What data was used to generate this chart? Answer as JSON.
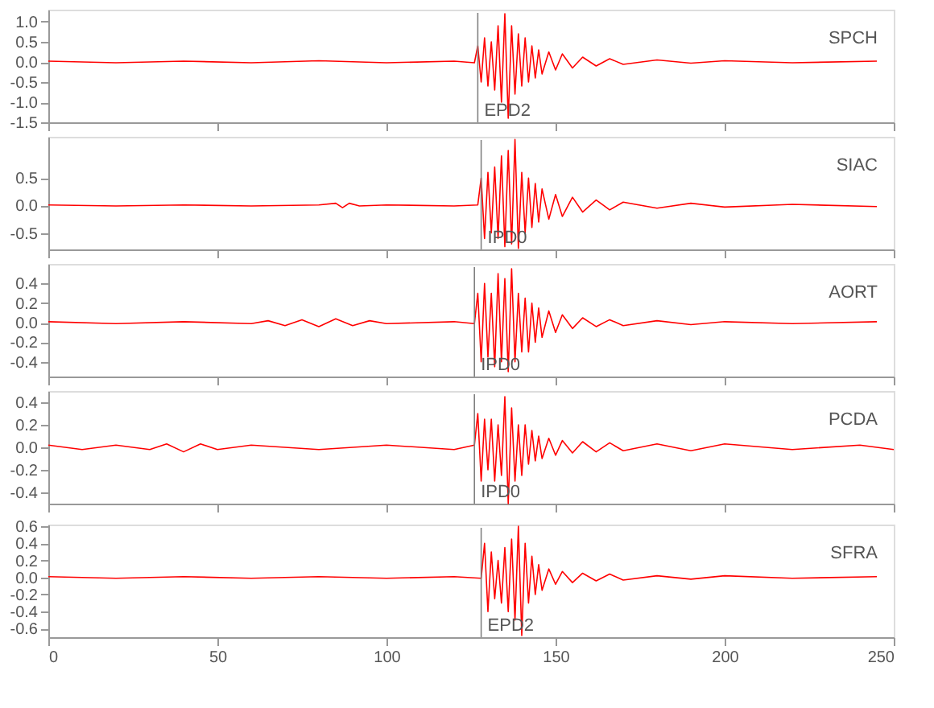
{
  "chart_data": [
    {
      "type": "line",
      "tick_labels": "y",
      "xlim": [
        0,
        250
      ],
      "xticks": [
        0,
        50,
        100,
        150,
        200,
        250
      ],
      "ylim": [
        -1.5,
        1.3
      ],
      "yticks": [
        {
          "value": -1.5,
          "label": "-1.5"
        },
        {
          "value": -1,
          "label": "-1.0"
        },
        {
          "value": -0.5,
          "label": "-0.5"
        },
        {
          "value": 0,
          "label": "0.0"
        },
        {
          "value": 0.5,
          "label": "0.5"
        },
        {
          "value": 1,
          "label": "1.0"
        }
      ],
      "grid": false,
      "marker": "none",
      "line_style": "solid",
      "series": [
        {
          "name": "SPCH",
          "color": "#ff0000",
          "x": [
            0,
            20,
            40,
            60,
            80,
            100,
            120,
            126,
            127,
            128,
            129,
            130,
            131,
            132,
            133,
            134,
            135,
            136,
            137,
            138,
            139,
            140,
            141,
            142,
            143,
            144,
            145,
            146,
            148,
            150,
            152,
            155,
            158,
            162,
            166,
            170,
            180,
            190,
            200,
            220,
            245
          ],
          "values": [
            0.02,
            -0.02,
            0.02,
            -0.02,
            0.03,
            -0.02,
            0.02,
            -0.02,
            0.4,
            -0.5,
            0.6,
            -0.6,
            0.5,
            -0.7,
            0.9,
            -1.0,
            1.2,
            -1.4,
            0.9,
            -0.8,
            0.7,
            -0.6,
            0.6,
            -0.5,
            0.4,
            -0.4,
            0.3,
            -0.3,
            0.25,
            -0.2,
            0.2,
            -0.15,
            0.12,
            -0.1,
            0.08,
            -0.06,
            0.05,
            -0.03,
            0.03,
            -0.02,
            0.02
          ]
        }
      ],
      "ref_lines": [
        {
          "axis": "x",
          "value": 127,
          "label": "EPD2",
          "color": "#808080"
        }
      ]
    },
    {
      "type": "line",
      "tick_labels": "y",
      "xlim": [
        0,
        250
      ],
      "xticks": [
        0,
        50,
        100,
        150,
        200,
        250
      ],
      "ylim": [
        -0.8,
        1.25
      ],
      "yticks": [
        {
          "value": -0.5,
          "label": "-0.5"
        },
        {
          "value": 0,
          "label": "0.0"
        },
        {
          "value": 0.5,
          "label": "0.5"
        }
      ],
      "grid": false,
      "marker": "none",
      "line_style": "solid",
      "series": [
        {
          "name": "SIAC",
          "color": "#ff0000",
          "x": [
            0,
            20,
            40,
            60,
            80,
            85,
            87,
            89,
            92,
            100,
            120,
            127,
            128,
            129,
            130,
            131,
            132,
            133,
            134,
            135,
            136,
            137,
            138,
            139,
            140,
            141,
            142,
            143,
            144,
            145,
            146,
            148,
            150,
            152,
            155,
            158,
            162,
            166,
            170,
            180,
            190,
            200,
            220,
            245
          ],
          "values": [
            0.01,
            -0.01,
            0.01,
            -0.01,
            0.01,
            0.04,
            -0.04,
            0.04,
            -0.01,
            0.01,
            -0.01,
            0.01,
            0.5,
            -0.6,
            0.6,
            -0.5,
            0.7,
            -0.6,
            0.9,
            -0.75,
            1.0,
            -0.7,
            1.2,
            -0.78,
            0.6,
            -0.5,
            0.5,
            -0.4,
            0.4,
            -0.3,
            0.3,
            -0.25,
            0.2,
            -0.2,
            0.15,
            -0.12,
            0.1,
            -0.08,
            0.06,
            -0.05,
            0.04,
            -0.03,
            0.02,
            -0.02
          ]
        }
      ],
      "ref_lines": [
        {
          "axis": "x",
          "value": 128,
          "label": "IPD0",
          "color": "#808080"
        }
      ]
    },
    {
      "type": "line",
      "tick_labels": "y",
      "xlim": [
        0,
        250
      ],
      "xticks": [
        0,
        50,
        100,
        150,
        200,
        250
      ],
      "ylim": [
        -0.55,
        0.6
      ],
      "yticks": [
        {
          "value": -0.4,
          "label": "-0.4"
        },
        {
          "value": -0.2,
          "label": "-0.2"
        },
        {
          "value": 0,
          "label": "0.0"
        },
        {
          "value": 0.2,
          "label": "0.2"
        },
        {
          "value": 0.4,
          "label": "0.4"
        }
      ],
      "grid": false,
      "marker": "none",
      "line_style": "solid",
      "series": [
        {
          "name": "AORT",
          "color": "#ff0000",
          "x": [
            0,
            20,
            40,
            60,
            65,
            70,
            75,
            80,
            85,
            90,
            95,
            100,
            120,
            126,
            127,
            128,
            129,
            130,
            131,
            132,
            133,
            134,
            135,
            136,
            137,
            138,
            139,
            140,
            141,
            142,
            143,
            144,
            145,
            146,
            148,
            150,
            152,
            155,
            158,
            162,
            166,
            170,
            180,
            190,
            200,
            220,
            245
          ],
          "values": [
            0.01,
            -0.01,
            0.01,
            -0.01,
            0.02,
            -0.03,
            0.03,
            -0.04,
            0.04,
            -0.03,
            0.02,
            -0.01,
            0.01,
            -0.01,
            0.3,
            -0.4,
            0.4,
            -0.35,
            0.3,
            -0.45,
            0.5,
            -0.4,
            0.45,
            -0.5,
            0.55,
            -0.4,
            0.3,
            -0.3,
            0.25,
            -0.3,
            0.2,
            -0.2,
            0.15,
            -0.15,
            0.12,
            -0.1,
            0.08,
            -0.06,
            0.05,
            -0.04,
            0.03,
            -0.03,
            0.02,
            -0.02,
            0.01,
            -0.01,
            0.01
          ]
        }
      ],
      "ref_lines": [
        {
          "axis": "x",
          "value": 126,
          "label": "IPD0",
          "color": "#808080"
        }
      ]
    },
    {
      "type": "line",
      "tick_labels": "y",
      "xlim": [
        0,
        250
      ],
      "xticks": [
        0,
        50,
        100,
        150,
        200,
        250
      ],
      "ylim": [
        -0.5,
        0.5
      ],
      "yticks": [
        {
          "value": -0.4,
          "label": "-0.4"
        },
        {
          "value": -0.2,
          "label": "-0.2"
        },
        {
          "value": 0,
          "label": "0.0"
        },
        {
          "value": 0.2,
          "label": "0.2"
        },
        {
          "value": 0.4,
          "label": "0.4"
        }
      ],
      "grid": false,
      "marker": "none",
      "line_style": "solid",
      "series": [
        {
          "name": "PCDA",
          "color": "#ff0000",
          "x": [
            0,
            10,
            20,
            30,
            35,
            40,
            45,
            50,
            60,
            80,
            100,
            120,
            126,
            127,
            128,
            129,
            130,
            131,
            132,
            133,
            134,
            135,
            136,
            137,
            138,
            139,
            140,
            141,
            142,
            143,
            144,
            145,
            146,
            148,
            150,
            152,
            155,
            158,
            162,
            166,
            170,
            180,
            190,
            200,
            220,
            240,
            250
          ],
          "values": [
            0.02,
            -0.02,
            0.02,
            -0.02,
            0.03,
            -0.04,
            0.03,
            -0.02,
            0.02,
            -0.02,
            0.02,
            -0.02,
            0.02,
            0.3,
            -0.3,
            0.25,
            -0.2,
            0.25,
            -0.3,
            0.2,
            -0.25,
            0.45,
            -0.5,
            0.35,
            -0.3,
            0.2,
            -0.25,
            0.2,
            -0.15,
            0.15,
            -0.12,
            0.1,
            -0.1,
            0.08,
            -0.07,
            0.06,
            -0.05,
            0.05,
            -0.04,
            0.04,
            -0.03,
            0.03,
            -0.03,
            0.03,
            -0.02,
            0.02,
            -0.02
          ]
        }
      ],
      "ref_lines": [
        {
          "axis": "x",
          "value": 126,
          "label": "IPD0",
          "color": "#808080"
        }
      ]
    },
    {
      "type": "line",
      "xlim": [
        0,
        250
      ],
      "xticks": [
        0,
        50,
        100,
        150,
        200,
        250
      ],
      "ylim": [
        -0.7,
        0.62
      ],
      "yticks": [
        {
          "value": -0.6,
          "label": "-0.6"
        },
        {
          "value": -0.4,
          "label": "-0.4"
        },
        {
          "value": -0.2,
          "label": "-0.2"
        },
        {
          "value": 0,
          "label": "0.0"
        },
        {
          "value": 0.2,
          "label": "0.2"
        },
        {
          "value": 0.4,
          "label": "0.4"
        },
        {
          "value": 0.6,
          "label": "0.6"
        }
      ],
      "grid": false,
      "marker": "none",
      "line_style": "solid",
      "series": [
        {
          "name": "SFRA",
          "color": "#ff0000",
          "x": [
            0,
            20,
            40,
            60,
            80,
            100,
            120,
            128,
            129,
            130,
            131,
            132,
            133,
            134,
            135,
            136,
            137,
            138,
            139,
            140,
            141,
            142,
            143,
            144,
            145,
            146,
            148,
            150,
            152,
            155,
            158,
            162,
            166,
            170,
            180,
            190,
            200,
            220,
            245
          ],
          "values": [
            0.01,
            -0.01,
            0.01,
            -0.01,
            0.01,
            -0.01,
            0.01,
            -0.01,
            0.4,
            -0.4,
            0.3,
            -0.25,
            0.2,
            -0.3,
            0.35,
            -0.4,
            0.45,
            -0.5,
            0.6,
            -0.68,
            0.4,
            -0.3,
            0.25,
            -0.2,
            0.15,
            -0.15,
            0.1,
            -0.08,
            0.07,
            -0.06,
            0.05,
            -0.04,
            0.04,
            -0.03,
            0.02,
            -0.02,
            0.02,
            -0.01,
            0.01
          ]
        }
      ],
      "ref_lines": [
        {
          "axis": "x",
          "value": 128,
          "label": "EPD2",
          "color": "#808080"
        }
      ]
    }
  ]
}
